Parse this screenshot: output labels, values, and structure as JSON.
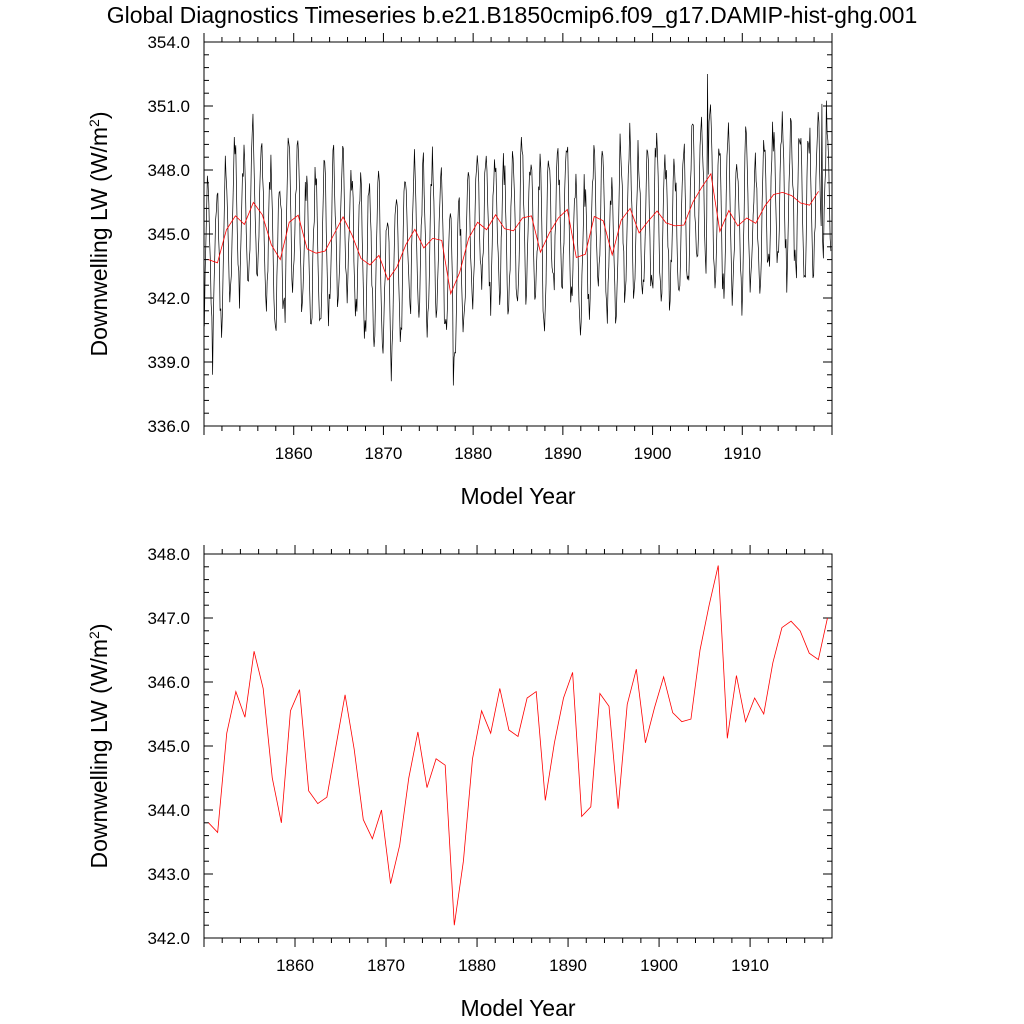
{
  "title": "Global Diagnostics Timeseries b.e21.B1850cmip6.f09_g17.DAMIP-hist-ghg.001",
  "colors": {
    "monthly": "#000000",
    "annual": "#ff0000"
  },
  "chart_data": [
    {
      "type": "line",
      "xlabel": "Model Year",
      "ylabel": "Downwelling LW (W/m²)",
      "ylabel_main": "Downwelling LW (W/m",
      "ylabel_sup": "2",
      "ylabel_end": ")",
      "xlim": [
        1850.0,
        1920.0
      ],
      "ylim": [
        336.0,
        354.0
      ],
      "xticks": [
        1860,
        1870,
        1880,
        1890,
        1900,
        1910
      ],
      "yticks": [
        "336.0",
        "339.0",
        "342.0",
        "345.0",
        "348.0",
        "351.0",
        "354.0"
      ],
      "grid": false,
      "legend": "none",
      "series": [
        {
          "resolution": "monthly",
          "color": "#000000",
          "note": "seasonal cycle approx. 6-8 W/m2 peak-to-trough around the annual mean",
          "min": 337.9,
          "max": 352.5
        },
        {
          "resolution": "annual",
          "color": "#ff0000",
          "x": [
            1850.5,
            1851.5,
            1852.5,
            1853.5,
            1854.5,
            1855.5,
            1856.5,
            1857.5,
            1858.5,
            1859.5,
            1860.5,
            1861.5,
            1862.5,
            1863.5,
            1864.5,
            1865.5,
            1866.5,
            1867.5,
            1868.5,
            1869.5,
            1870.5,
            1871.5,
            1872.5,
            1873.5,
            1874.5,
            1875.5,
            1876.5,
            1877.5,
            1878.5,
            1879.5,
            1880.5,
            1881.5,
            1882.5,
            1883.5,
            1884.5,
            1885.5,
            1886.5,
            1887.5,
            1888.5,
            1889.5,
            1890.5,
            1891.5,
            1892.5,
            1893.5,
            1894.5,
            1895.5,
            1896.5,
            1897.5,
            1898.5,
            1899.5,
            1900.5,
            1901.5,
            1902.5,
            1903.5,
            1904.5,
            1905.5,
            1906.5,
            1907.5,
            1908.5,
            1909.5,
            1910.5,
            1911.5,
            1912.5,
            1913.5,
            1914.5,
            1915.5,
            1916.5,
            1917.5,
            1918.5
          ],
          "values": [
            343.8,
            343.65,
            345.2,
            345.85,
            345.45,
            346.48,
            345.9,
            344.5,
            343.8,
            345.55,
            345.88,
            344.3,
            344.1,
            344.2,
            345.0,
            345.8,
            344.95,
            343.85,
            343.55,
            344.0,
            342.85,
            343.45,
            344.5,
            345.22,
            344.35,
            344.8,
            344.7,
            342.2,
            343.2,
            344.8,
            345.55,
            345.2,
            345.9,
            345.25,
            345.15,
            345.75,
            345.85,
            344.15,
            345.05,
            345.75,
            346.15,
            343.9,
            344.05,
            345.82,
            345.62,
            344.02,
            345.65,
            346.2,
            345.05,
            345.6,
            346.08,
            345.52,
            345.38,
            345.42,
            346.5,
            347.2,
            347.82,
            345.12,
            346.1,
            345.38,
            345.75,
            345.5,
            346.3,
            346.85,
            346.95,
            346.8,
            346.45,
            346.35,
            347.0
          ]
        }
      ]
    },
    {
      "type": "line",
      "xlabel": "Model Year",
      "ylabel": "Downwelling LW (W/m²)",
      "ylabel_main": "Downwelling LW (W/m",
      "ylabel_sup": "2",
      "ylabel_end": ")",
      "xlim": [
        1850.0,
        1919.0
      ],
      "ylim": [
        342.0,
        348.0
      ],
      "xticks": [
        1860,
        1870,
        1880,
        1890,
        1900,
        1910
      ],
      "yticks": [
        "342.0",
        "343.0",
        "344.0",
        "345.0",
        "346.0",
        "347.0",
        "348.0"
      ],
      "grid": false,
      "legend": "none",
      "series_ref": "annual"
    }
  ]
}
